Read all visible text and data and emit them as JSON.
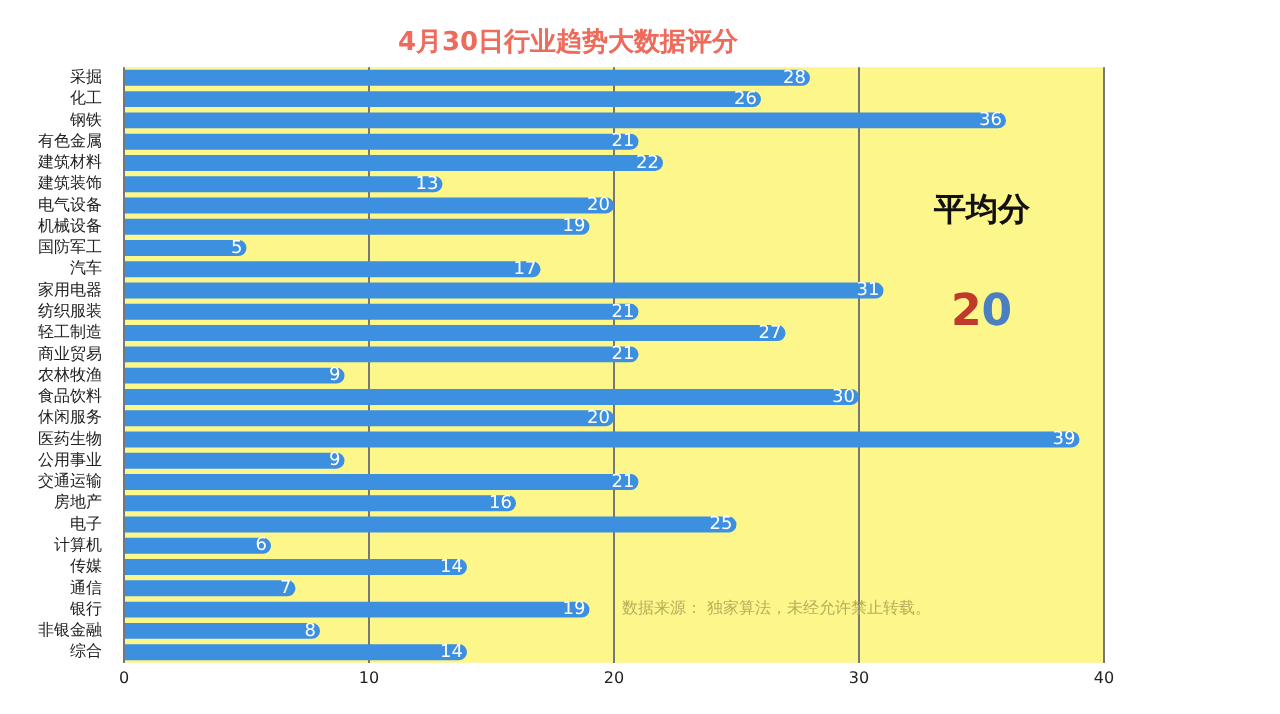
{
  "chart_data": {
    "type": "bar",
    "orientation": "horizontal",
    "title": "4月30日行业趋势大数据评分",
    "categories": [
      "采掘",
      "化工",
      "钢铁",
      "有色金属",
      "建筑材料",
      "建筑装饰",
      "电气设备",
      "机械设备",
      "国防军工",
      "汽车",
      "家用电器",
      "纺织服装",
      "轻工制造",
      "商业贸易",
      "农林牧渔",
      "食品饮料",
      "休闲服务",
      "医药生物",
      "公用事业",
      "交通运输",
      "房地产",
      "电子",
      "计算机",
      "传媒",
      "通信",
      "银行",
      "非银金融",
      "综合"
    ],
    "values": [
      28,
      26,
      36,
      21,
      22,
      13,
      20,
      19,
      5,
      17,
      31,
      21,
      27,
      21,
      9,
      30,
      20,
      39,
      9,
      21,
      16,
      25,
      6,
      14,
      7,
      19,
      8,
      14
    ],
    "color": "#3d8fe0",
    "xlim": [
      0,
      40
    ],
    "xticks": [
      0,
      10,
      20,
      30,
      40
    ],
    "grid": "x",
    "data_labels": true,
    "annotations": [
      "平均分",
      "20",
      "数据来源： 独家算法，未经允许禁止转载。"
    ]
  }
}
